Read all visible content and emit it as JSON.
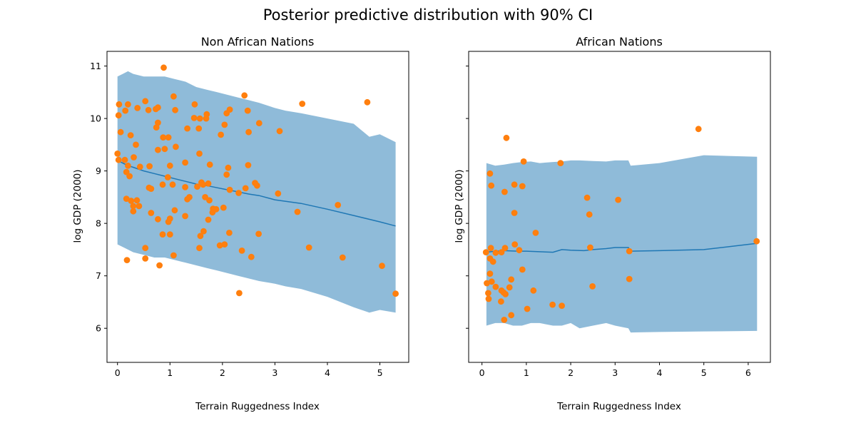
{
  "figure": {
    "suptitle": "Posterior predictive distribution with 90% CI"
  },
  "colors": {
    "band": "#1f77b4",
    "band_opacity": 0.5,
    "mean_line": "#1f77b4",
    "observed": "#ff7f0e"
  },
  "chart_data": [
    {
      "type": "scatter",
      "title": "Non African Nations",
      "xlabel": "Terrain Ruggedness Index",
      "ylabel": "log GDP (2000)",
      "xlim": [
        -0.2,
        5.55
      ],
      "ylim": [
        5.35,
        11.28
      ],
      "xticks": [
        0,
        1,
        2,
        3,
        4,
        5
      ],
      "yticks": [
        6,
        7,
        8,
        9,
        10,
        11
      ],
      "grid": false,
      "legend": "none",
      "mean_line": {
        "x": [
          0.0,
          0.1,
          0.2,
          0.3,
          0.5,
          0.7,
          0.9,
          1.1,
          1.3,
          1.5,
          1.7,
          1.9,
          2.1,
          2.3,
          2.5,
          2.7,
          3.0,
          3.5,
          4.0,
          4.5,
          5.0,
          5.3
        ],
        "y": [
          9.2,
          9.15,
          9.1,
          9.07,
          9.0,
          8.95,
          8.9,
          8.85,
          8.8,
          8.75,
          8.72,
          8.68,
          8.64,
          8.6,
          8.56,
          8.53,
          8.45,
          8.38,
          8.27,
          8.15,
          8.03,
          7.95
        ]
      },
      "ci_band": {
        "x": [
          0.0,
          0.1,
          0.2,
          0.3,
          0.5,
          0.7,
          0.9,
          1.1,
          1.3,
          1.5,
          1.7,
          1.9,
          2.1,
          2.3,
          2.5,
          2.7,
          3.0,
          3.2,
          3.5,
          4.0,
          4.5,
          4.8,
          5.0,
          5.3
        ],
        "upper": [
          10.8,
          10.85,
          10.9,
          10.85,
          10.8,
          10.8,
          10.8,
          10.75,
          10.7,
          10.6,
          10.55,
          10.5,
          10.45,
          10.4,
          10.35,
          10.3,
          10.2,
          10.15,
          10.1,
          10.0,
          9.9,
          9.65,
          9.7,
          9.55
        ],
        "lower": [
          7.6,
          7.55,
          7.5,
          7.45,
          7.4,
          7.35,
          7.35,
          7.3,
          7.25,
          7.2,
          7.15,
          7.1,
          7.05,
          7.0,
          6.95,
          6.9,
          6.85,
          6.8,
          6.75,
          6.6,
          6.4,
          6.3,
          6.35,
          6.3
        ]
      },
      "points": [
        {
          "x": 0.88,
          "y": 10.97
        },
        {
          "x": 2.42,
          "y": 10.44
        },
        {
          "x": 1.07,
          "y": 10.42
        },
        {
          "x": 0.53,
          "y": 10.33
        },
        {
          "x": 0.03,
          "y": 10.27
        },
        {
          "x": 0.2,
          "y": 10.27
        },
        {
          "x": 1.47,
          "y": 10.27
        },
        {
          "x": 3.52,
          "y": 10.28
        },
        {
          "x": 4.76,
          "y": 10.31
        },
        {
          "x": 0.38,
          "y": 10.2
        },
        {
          "x": 0.59,
          "y": 10.16
        },
        {
          "x": 0.73,
          "y": 10.18
        },
        {
          "x": 0.77,
          "y": 10.21
        },
        {
          "x": 0.15,
          "y": 10.15
        },
        {
          "x": 1.1,
          "y": 10.16
        },
        {
          "x": 2.14,
          "y": 10.17
        },
        {
          "x": 2.48,
          "y": 10.15
        },
        {
          "x": 2.08,
          "y": 10.1
        },
        {
          "x": 1.7,
          "y": 10.08
        },
        {
          "x": 1.46,
          "y": 10.01
        },
        {
          "x": 1.57,
          "y": 10.0
        },
        {
          "x": 1.69,
          "y": 10.0
        },
        {
          "x": 0.02,
          "y": 10.06
        },
        {
          "x": 0.77,
          "y": 9.92
        },
        {
          "x": 2.04,
          "y": 9.88
        },
        {
          "x": 2.7,
          "y": 9.91
        },
        {
          "x": 0.74,
          "y": 9.83
        },
        {
          "x": 1.33,
          "y": 9.81
        },
        {
          "x": 1.55,
          "y": 9.81
        },
        {
          "x": 3.09,
          "y": 9.76
        },
        {
          "x": 0.06,
          "y": 9.74
        },
        {
          "x": 2.5,
          "y": 9.74
        },
        {
          "x": 0.25,
          "y": 9.68
        },
        {
          "x": 1.97,
          "y": 9.69
        },
        {
          "x": 0.87,
          "y": 9.64
        },
        {
          "x": 0.97,
          "y": 9.64
        },
        {
          "x": 0.35,
          "y": 9.5
        },
        {
          "x": 0.9,
          "y": 9.42
        },
        {
          "x": 0.77,
          "y": 9.4
        },
        {
          "x": 1.11,
          "y": 9.46
        },
        {
          "x": 0.0,
          "y": 9.33
        },
        {
          "x": 1.56,
          "y": 9.33
        },
        {
          "x": 0.31,
          "y": 9.26
        },
        {
          "x": 0.02,
          "y": 9.21
        },
        {
          "x": 0.14,
          "y": 9.21
        },
        {
          "x": 1.29,
          "y": 9.16
        },
        {
          "x": 0.2,
          "y": 9.1
        },
        {
          "x": 0.43,
          "y": 9.08
        },
        {
          "x": 0.61,
          "y": 9.09
        },
        {
          "x": 1.0,
          "y": 9.1
        },
        {
          "x": 1.76,
          "y": 9.12
        },
        {
          "x": 2.11,
          "y": 9.06
        },
        {
          "x": 2.49,
          "y": 9.11
        },
        {
          "x": 0.17,
          "y": 8.98
        },
        {
          "x": 2.08,
          "y": 8.93
        },
        {
          "x": 0.23,
          "y": 8.9
        },
        {
          "x": 0.96,
          "y": 8.88
        },
        {
          "x": 1.6,
          "y": 8.78
        },
        {
          "x": 1.73,
          "y": 8.76
        },
        {
          "x": 0.86,
          "y": 8.74
        },
        {
          "x": 1.05,
          "y": 8.74
        },
        {
          "x": 1.52,
          "y": 8.7
        },
        {
          "x": 1.29,
          "y": 8.69
        },
        {
          "x": 1.63,
          "y": 8.74
        },
        {
          "x": 2.62,
          "y": 8.77
        },
        {
          "x": 2.66,
          "y": 8.72
        },
        {
          "x": 2.44,
          "y": 8.67
        },
        {
          "x": 0.6,
          "y": 8.68
        },
        {
          "x": 0.64,
          "y": 8.66
        },
        {
          "x": 2.14,
          "y": 8.64
        },
        {
          "x": 2.31,
          "y": 8.58
        },
        {
          "x": 3.06,
          "y": 8.57
        },
        {
          "x": 1.37,
          "y": 8.5
        },
        {
          "x": 1.67,
          "y": 8.5
        },
        {
          "x": 0.17,
          "y": 8.47
        },
        {
          "x": 0.26,
          "y": 8.43
        },
        {
          "x": 0.37,
          "y": 8.44
        },
        {
          "x": 1.33,
          "y": 8.46
        },
        {
          "x": 1.75,
          "y": 8.44
        },
        {
          "x": 0.3,
          "y": 8.33
        },
        {
          "x": 0.41,
          "y": 8.33
        },
        {
          "x": 4.2,
          "y": 8.35
        },
        {
          "x": 0.3,
          "y": 8.23
        },
        {
          "x": 1.82,
          "y": 8.28
        },
        {
          "x": 1.88,
          "y": 8.27
        },
        {
          "x": 2.02,
          "y": 8.3
        },
        {
          "x": 1.09,
          "y": 8.25
        },
        {
          "x": 0.64,
          "y": 8.2
        },
        {
          "x": 1.81,
          "y": 8.21
        },
        {
          "x": 3.43,
          "y": 8.22
        },
        {
          "x": 1.29,
          "y": 8.14
        },
        {
          "x": 0.77,
          "y": 8.08
        },
        {
          "x": 0.97,
          "y": 8.03
        },
        {
          "x": 1.0,
          "y": 8.09
        },
        {
          "x": 1.73,
          "y": 8.07
        },
        {
          "x": 1.64,
          "y": 7.85
        },
        {
          "x": 2.13,
          "y": 7.82
        },
        {
          "x": 2.69,
          "y": 7.8
        },
        {
          "x": 0.86,
          "y": 7.79
        },
        {
          "x": 1.0,
          "y": 7.79
        },
        {
          "x": 1.58,
          "y": 7.76
        },
        {
          "x": 1.95,
          "y": 7.58
        },
        {
          "x": 2.04,
          "y": 7.6
        },
        {
          "x": 0.53,
          "y": 7.53
        },
        {
          "x": 1.56,
          "y": 7.53
        },
        {
          "x": 3.65,
          "y": 7.54
        },
        {
          "x": 2.37,
          "y": 7.48
        },
        {
          "x": 1.07,
          "y": 7.39
        },
        {
          "x": 2.55,
          "y": 7.36
        },
        {
          "x": 4.29,
          "y": 7.35
        },
        {
          "x": 0.18,
          "y": 7.3
        },
        {
          "x": 0.53,
          "y": 7.33
        },
        {
          "x": 0.8,
          "y": 7.2
        },
        {
          "x": 5.04,
          "y": 7.19
        },
        {
          "x": 2.32,
          "y": 6.67
        },
        {
          "x": 5.3,
          "y": 6.66
        }
      ]
    },
    {
      "type": "scatter",
      "title": "African Nations",
      "xlabel": "Terrain Ruggedness Index",
      "ylabel": "log GDP (2000)",
      "xlim": [
        -0.3,
        6.5
      ],
      "ylim": [
        5.35,
        11.28
      ],
      "xticks": [
        0,
        1,
        2,
        3,
        4,
        5,
        6
      ],
      "yticks": [
        6,
        7,
        8,
        9,
        10,
        11
      ],
      "ytick_labels_shown": false,
      "grid": false,
      "legend": "none",
      "mean_line": {
        "x": [
          0.1,
          0.3,
          0.5,
          0.8,
          1.0,
          1.3,
          1.6,
          1.8,
          2.0,
          2.3,
          2.5,
          2.8,
          3.0,
          3.3,
          3.35,
          4.0,
          5.0,
          6.2
        ],
        "y": [
          7.45,
          7.47,
          7.48,
          7.47,
          7.47,
          7.46,
          7.45,
          7.5,
          7.49,
          7.48,
          7.5,
          7.52,
          7.54,
          7.54,
          7.47,
          7.48,
          7.5,
          7.62
        ]
      },
      "ci_band": {
        "x": [
          0.1,
          0.3,
          0.5,
          0.7,
          0.9,
          1.1,
          1.3,
          1.6,
          1.8,
          2.0,
          2.2,
          2.5,
          2.8,
          3.0,
          3.3,
          3.35,
          4.0,
          5.0,
          6.2
        ],
        "upper": [
          9.15,
          9.1,
          9.12,
          9.15,
          9.17,
          9.18,
          9.15,
          9.17,
          9.18,
          9.2,
          9.2,
          9.19,
          9.18,
          9.2,
          9.2,
          9.1,
          9.15,
          9.3,
          9.27
        ],
        "lower": [
          6.05,
          6.1,
          6.1,
          6.05,
          6.05,
          6.1,
          6.1,
          6.05,
          6.05,
          6.1,
          6.0,
          6.05,
          6.1,
          6.05,
          6.0,
          5.92,
          5.93,
          5.94,
          5.95
        ]
      },
      "points": [
        {
          "x": 0.55,
          "y": 9.63
        },
        {
          "x": 4.88,
          "y": 9.8
        },
        {
          "x": 0.94,
          "y": 9.18
        },
        {
          "x": 1.77,
          "y": 9.15
        },
        {
          "x": 0.18,
          "y": 8.95
        },
        {
          "x": 0.21,
          "y": 8.72
        },
        {
          "x": 0.73,
          "y": 8.74
        },
        {
          "x": 0.91,
          "y": 8.71
        },
        {
          "x": 0.51,
          "y": 8.6
        },
        {
          "x": 2.37,
          "y": 8.49
        },
        {
          "x": 3.07,
          "y": 8.45
        },
        {
          "x": 0.73,
          "y": 8.2
        },
        {
          "x": 2.42,
          "y": 8.17
        },
        {
          "x": 1.21,
          "y": 7.82
        },
        {
          "x": 0.74,
          "y": 7.6
        },
        {
          "x": 0.2,
          "y": 7.53
        },
        {
          "x": 0.52,
          "y": 7.53
        },
        {
          "x": 2.44,
          "y": 7.54
        },
        {
          "x": 0.31,
          "y": 7.44
        },
        {
          "x": 0.44,
          "y": 7.45
        },
        {
          "x": 0.84,
          "y": 7.49
        },
        {
          "x": 3.32,
          "y": 7.47
        },
        {
          "x": 0.09,
          "y": 7.45
        },
        {
          "x": 0.18,
          "y": 7.33
        },
        {
          "x": 0.25,
          "y": 7.27
        },
        {
          "x": 0.91,
          "y": 7.12
        },
        {
          "x": 0.18,
          "y": 7.04
        },
        {
          "x": 0.11,
          "y": 6.86
        },
        {
          "x": 0.22,
          "y": 6.89
        },
        {
          "x": 0.66,
          "y": 6.93
        },
        {
          "x": 3.32,
          "y": 6.94
        },
        {
          "x": 0.31,
          "y": 6.79
        },
        {
          "x": 0.44,
          "y": 6.72
        },
        {
          "x": 0.62,
          "y": 6.78
        },
        {
          "x": 2.49,
          "y": 6.8
        },
        {
          "x": 0.49,
          "y": 6.68
        },
        {
          "x": 0.53,
          "y": 6.65
        },
        {
          "x": 1.16,
          "y": 6.72
        },
        {
          "x": 0.14,
          "y": 6.67
        },
        {
          "x": 0.15,
          "y": 6.56
        },
        {
          "x": 0.43,
          "y": 6.51
        },
        {
          "x": 1.59,
          "y": 6.45
        },
        {
          "x": 1.8,
          "y": 6.43
        },
        {
          "x": 1.02,
          "y": 6.37
        },
        {
          "x": 0.66,
          "y": 6.25
        },
        {
          "x": 0.5,
          "y": 6.16
        },
        {
          "x": 6.19,
          "y": 7.66
        }
      ]
    }
  ]
}
